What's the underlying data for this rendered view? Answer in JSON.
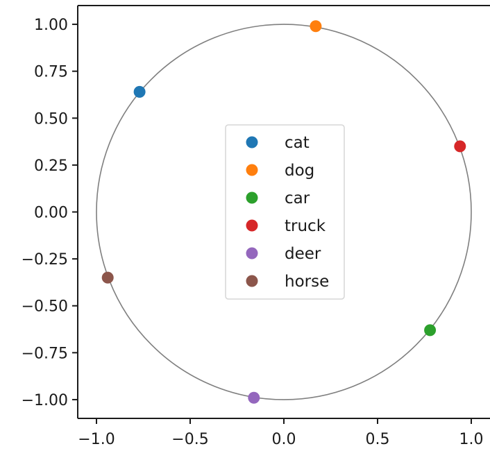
{
  "chart_data": {
    "type": "scatter",
    "title": "",
    "xlabel": "",
    "ylabel": "",
    "xlim": [
      -1.1,
      1.1
    ],
    "ylim": [
      -1.1,
      1.1
    ],
    "x_ticks": [
      -1.0,
      -0.5,
      0.0,
      0.5,
      1.0
    ],
    "x_tick_labels": [
      "−1.0",
      "−0.5",
      "0.0",
      "0.5",
      "1.0"
    ],
    "y_ticks": [
      1.0,
      0.75,
      0.5,
      0.25,
      0.0,
      -0.25,
      -0.5,
      -0.75,
      -1.0
    ],
    "y_tick_labels": [
      "1.00",
      "0.75",
      "0.50",
      "0.25",
      "0.00",
      "−0.25",
      "−0.50",
      "−0.75",
      "−1.00"
    ],
    "grid": false,
    "legend_position": "center",
    "unit_circle": {
      "center": [
        0,
        0
      ],
      "radius": 1.0,
      "color": "#7f7f7f"
    },
    "series": [
      {
        "name": "cat",
        "color": "#1f77b4",
        "x": [
          -0.77
        ],
        "y": [
          0.64
        ]
      },
      {
        "name": "dog",
        "color": "#ff7f0e",
        "x": [
          0.17
        ],
        "y": [
          0.99
        ]
      },
      {
        "name": "car",
        "color": "#2ca02c",
        "x": [
          0.78
        ],
        "y": [
          -0.63
        ]
      },
      {
        "name": "truck",
        "color": "#d62728",
        "x": [
          0.94
        ],
        "y": [
          0.35
        ]
      },
      {
        "name": "deer",
        "color": "#9467bd",
        "x": [
          -0.16
        ],
        "y": [
          -0.99
        ]
      },
      {
        "name": "horse",
        "color": "#8c564b",
        "x": [
          -0.94
        ],
        "y": [
          -0.35
        ]
      }
    ]
  }
}
